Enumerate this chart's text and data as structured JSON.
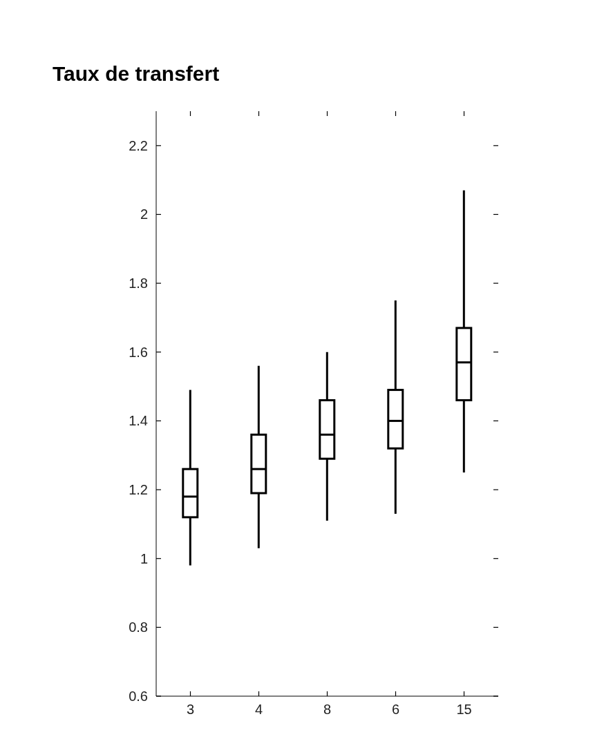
{
  "chart_data": {
    "type": "box",
    "title": "Taux de transfert",
    "categories": [
      "3",
      "4",
      "8",
      "6",
      "15"
    ],
    "color": "#000000",
    "boxes": [
      {
        "low": 0.98,
        "q1": 1.12,
        "median": 1.18,
        "q3": 1.26,
        "high": 1.49
      },
      {
        "low": 1.03,
        "q1": 1.19,
        "median": 1.26,
        "q3": 1.36,
        "high": 1.56
      },
      {
        "low": 1.11,
        "q1": 1.29,
        "median": 1.36,
        "q3": 1.46,
        "high": 1.6
      },
      {
        "low": 1.13,
        "q1": 1.32,
        "median": 1.4,
        "q3": 1.49,
        "high": 1.75
      },
      {
        "low": 1.25,
        "q1": 1.46,
        "median": 1.57,
        "q3": 1.67,
        "high": 2.07
      }
    ],
    "ylim": [
      0.6,
      2.3
    ],
    "yticks": [
      0.6,
      0.8,
      1,
      1.2,
      1.4,
      1.6,
      1.8,
      2,
      2.2
    ]
  }
}
